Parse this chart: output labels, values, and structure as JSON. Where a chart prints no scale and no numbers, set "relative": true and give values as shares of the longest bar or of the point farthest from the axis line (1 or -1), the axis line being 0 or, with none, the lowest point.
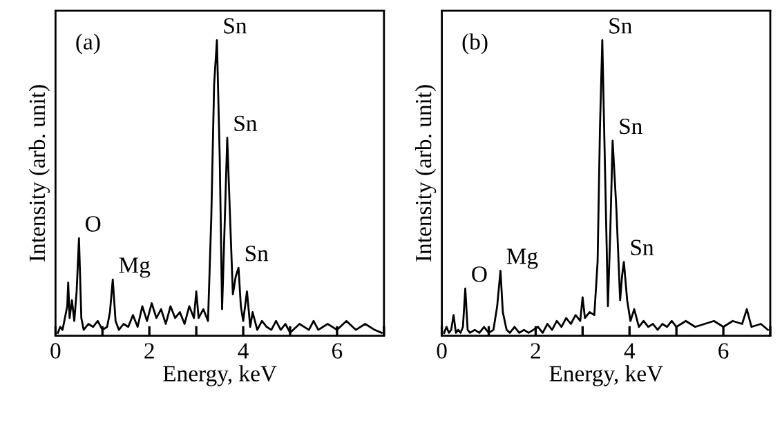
{
  "chart_data": [
    {
      "type": "line",
      "relative": true,
      "xlabel": "Energy, keV",
      "ylabel": "Intensity (arb. unit)",
      "xlim": [
        0,
        7
      ],
      "xticks": [
        0,
        {
          "value": 1,
          "label": null
        },
        2,
        {
          "value": 3,
          "label": null
        },
        4,
        {
          "value": 5,
          "label": null
        },
        6,
        {
          "value": 7,
          "label": null
        }
      ],
      "tick_labels": "x",
      "grid": false,
      "legend": false,
      "annotations": [
        "(a)",
        {
          "text": "O",
          "x": 0.5,
          "y": 0.33
        },
        {
          "text": "Mg",
          "x": 1.22,
          "y": 0.19
        },
        {
          "text": "Sn",
          "x": 3.44,
          "y": 1.0
        },
        {
          "text": "Sn",
          "x": 3.66,
          "y": 0.67
        },
        {
          "text": "Sn",
          "x": 3.9,
          "y": 0.23
        }
      ],
      "series": [
        {
          "color": "#000000",
          "x": [
            0.05,
            0.1,
            0.15,
            0.2,
            0.25,
            0.27,
            0.3,
            0.35,
            0.4,
            0.45,
            0.5,
            0.55,
            0.6,
            0.7,
            0.8,
            0.9,
            1.0,
            1.1,
            1.16,
            1.22,
            1.28,
            1.35,
            1.45,
            1.55,
            1.65,
            1.75,
            1.85,
            1.95,
            2.05,
            2.15,
            2.25,
            2.35,
            2.45,
            2.55,
            2.65,
            2.75,
            2.85,
            2.95,
            3.0,
            3.05,
            3.15,
            3.25,
            3.32,
            3.38,
            3.44,
            3.5,
            3.55,
            3.6,
            3.66,
            3.72,
            3.78,
            3.84,
            3.9,
            3.95,
            4.0,
            4.08,
            4.15,
            4.2,
            4.3,
            4.4,
            4.5,
            4.6,
            4.7,
            4.8,
            4.9,
            5.0,
            5.2,
            5.4,
            5.5,
            5.6,
            5.8,
            6.0,
            6.2,
            6.4,
            6.6,
            6.8,
            6.95
          ],
          "values": [
            0.01,
            0.03,
            0.02,
            0.06,
            0.1,
            0.18,
            0.06,
            0.12,
            0.05,
            0.15,
            0.33,
            0.06,
            0.02,
            0.04,
            0.03,
            0.05,
            0.02,
            0.03,
            0.08,
            0.19,
            0.05,
            0.02,
            0.04,
            0.03,
            0.07,
            0.03,
            0.1,
            0.05,
            0.11,
            0.06,
            0.09,
            0.04,
            0.1,
            0.06,
            0.08,
            0.04,
            0.1,
            0.06,
            0.15,
            0.06,
            0.09,
            0.05,
            0.4,
            0.85,
            1.0,
            0.6,
            0.09,
            0.35,
            0.67,
            0.4,
            0.14,
            0.2,
            0.23,
            0.1,
            0.05,
            0.15,
            0.03,
            0.08,
            0.02,
            0.05,
            0.03,
            0.02,
            0.05,
            0.02,
            0.04,
            0.01,
            0.04,
            0.02,
            0.05,
            0.02,
            0.04,
            0.02,
            0.05,
            0.02,
            0.04,
            0.02,
            0.01
          ]
        }
      ]
    },
    {
      "type": "line",
      "relative": true,
      "xlabel": "Energy, keV",
      "ylabel": "Intensity (arb. unit)",
      "xlim": [
        0,
        7
      ],
      "xticks": [
        0,
        {
          "value": 1,
          "label": null
        },
        2,
        {
          "value": 3,
          "label": null
        },
        4,
        {
          "value": 5,
          "label": null
        },
        6,
        {
          "value": 7,
          "label": null
        }
      ],
      "tick_labels": "x",
      "grid": false,
      "legend": false,
      "annotations": [
        "(b)",
        {
          "text": "O",
          "x": 0.5,
          "y": 0.16
        },
        {
          "text": "Mg",
          "x": 1.25,
          "y": 0.22
        },
        {
          "text": "Sn",
          "x": 3.42,
          "y": 1.0
        },
        {
          "text": "Sn",
          "x": 3.64,
          "y": 0.66
        },
        {
          "text": "Sn",
          "x": 3.88,
          "y": 0.25
        }
      ],
      "series": [
        {
          "color": "#000000",
          "x": [
            0.05,
            0.1,
            0.15,
            0.2,
            0.25,
            0.3,
            0.35,
            0.4,
            0.45,
            0.5,
            0.55,
            0.6,
            0.7,
            0.8,
            0.9,
            1.0,
            1.1,
            1.18,
            1.25,
            1.3,
            1.38,
            1.45,
            1.55,
            1.65,
            1.75,
            1.85,
            1.95,
            2.05,
            2.15,
            2.25,
            2.35,
            2.45,
            2.55,
            2.65,
            2.75,
            2.85,
            2.95,
            3.0,
            3.05,
            3.15,
            3.25,
            3.32,
            3.37,
            3.42,
            3.48,
            3.54,
            3.59,
            3.64,
            3.72,
            3.8,
            3.84,
            3.88,
            3.95,
            4.02,
            4.1,
            4.2,
            4.3,
            4.4,
            4.5,
            4.6,
            4.7,
            4.8,
            4.9,
            5.0,
            5.2,
            5.4,
            5.6,
            5.8,
            6.0,
            6.2,
            6.4,
            6.5,
            6.6,
            6.8,
            6.95
          ],
          "values": [
            0.01,
            0.03,
            0.01,
            0.02,
            0.07,
            0.01,
            0.02,
            0.01,
            0.03,
            0.16,
            0.02,
            0.01,
            0.02,
            0.01,
            0.03,
            0.01,
            0.02,
            0.1,
            0.22,
            0.08,
            0.02,
            0.01,
            0.03,
            0.01,
            0.02,
            0.01,
            0.02,
            0.03,
            0.01,
            0.04,
            0.02,
            0.05,
            0.03,
            0.06,
            0.04,
            0.07,
            0.05,
            0.13,
            0.06,
            0.08,
            0.07,
            0.25,
            0.7,
            1.0,
            0.55,
            0.1,
            0.35,
            0.66,
            0.43,
            0.12,
            0.2,
            0.25,
            0.12,
            0.05,
            0.09,
            0.03,
            0.05,
            0.03,
            0.04,
            0.02,
            0.04,
            0.03,
            0.05,
            0.03,
            0.05,
            0.03,
            0.04,
            0.05,
            0.03,
            0.05,
            0.04,
            0.09,
            0.03,
            0.04,
            0.02
          ]
        }
      ]
    }
  ]
}
